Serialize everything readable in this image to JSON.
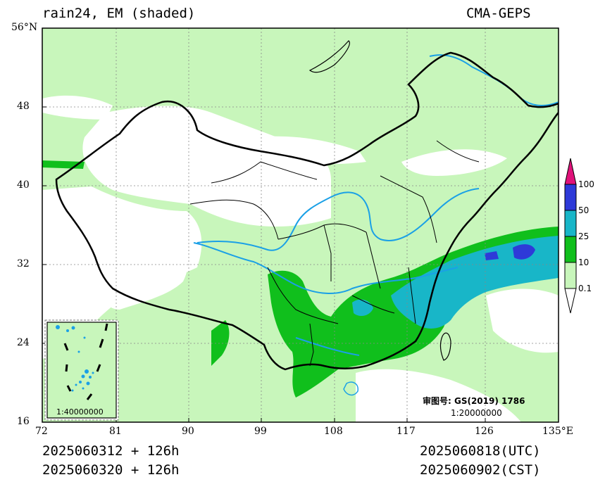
{
  "header": {
    "left": "rain24, EM (shaded)",
    "right": "CMA-GEPS"
  },
  "axes": {
    "y_labels": [
      "56°N",
      "48",
      "40",
      "32",
      "24",
      "16"
    ],
    "x_labels": [
      "72",
      "81",
      "90",
      "99",
      "108",
      "117",
      "126",
      "135°E"
    ]
  },
  "colorbar": {
    "labels": [
      "100",
      "50",
      "25",
      "10",
      "0.1"
    ],
    "colors": [
      "#e0127a",
      "#2e3ad8",
      "#18b6c8",
      "#10bf1c",
      "#c8f6bb",
      "#ffffff"
    ]
  },
  "map": {
    "ocean_color": "#c8f6bb",
    "approval_note": "审图号: GS(2019) 1786",
    "scale_main": "1:20000000",
    "inset_scale": "1:40000000"
  },
  "footer": {
    "init_utc": "2025060312 + 126h",
    "init_cst": "2025060320 + 126h",
    "valid_utc": "2025060818(UTC)",
    "valid_cst": "2025060902(CST)"
  }
}
